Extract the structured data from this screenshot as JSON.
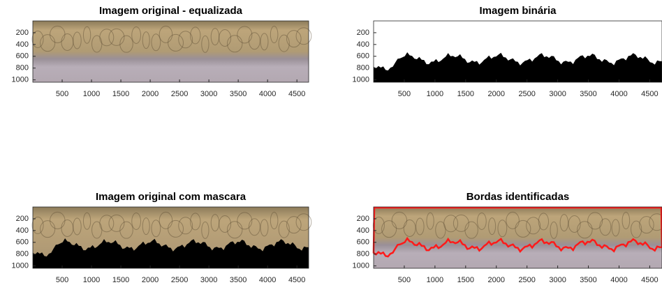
{
  "chart_data": [
    {
      "type": "image",
      "title": "Imagem original - equalizada",
      "xlim": [
        0,
        4700
      ],
      "ylim": [
        0,
        1040
      ],
      "y_reversed": true,
      "xticks": [
        500,
        1000,
        1500,
        2000,
        2500,
        3000,
        3500,
        4000,
        4500
      ],
      "yticks": [
        200,
        400,
        600,
        800,
        1000
      ]
    },
    {
      "type": "image",
      "title": "Imagem binária",
      "xlim": [
        0,
        4700
      ],
      "ylim": [
        0,
        1040
      ],
      "y_reversed": true,
      "xticks": [
        500,
        1000,
        1500,
        2000,
        2500,
        3000,
        3500,
        4000,
        4500
      ],
      "yticks": [
        200,
        400,
        600,
        800,
        1000
      ]
    },
    {
      "type": "image",
      "title": "Imagem original com mascara",
      "xlim": [
        0,
        4700
      ],
      "ylim": [
        0,
        1040
      ],
      "y_reversed": true,
      "xticks": [
        500,
        1000,
        1500,
        2000,
        2500,
        3000,
        3500,
        4000,
        4500
      ],
      "yticks": [
        200,
        400,
        600,
        800,
        1000
      ]
    },
    {
      "type": "image",
      "title": "Bordas identificadas",
      "xlim": [
        0,
        4700
      ],
      "ylim": [
        0,
        1040
      ],
      "y_reversed": true,
      "xticks": [
        500,
        1000,
        1500,
        2000,
        2500,
        3000,
        3500,
        4000,
        4500
      ],
      "yticks": [
        200,
        400,
        600,
        800,
        1000
      ]
    }
  ]
}
